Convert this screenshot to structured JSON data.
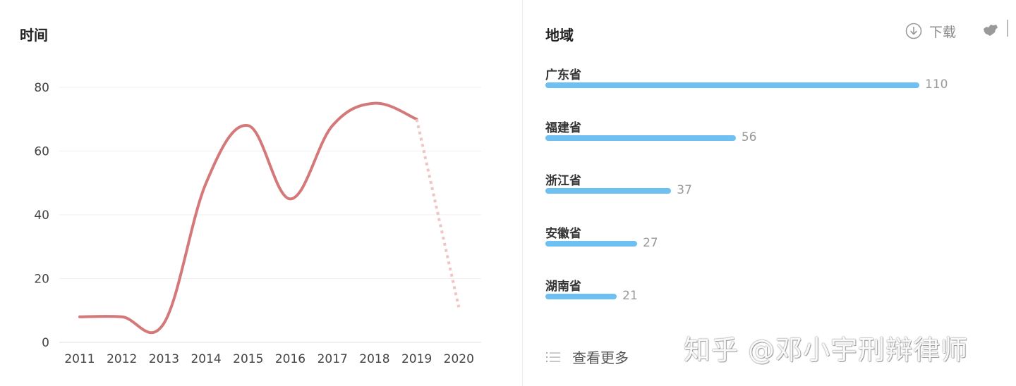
{
  "left_panel": {
    "title": "时间"
  },
  "right_panel": {
    "title": "地域",
    "download_label": "下载",
    "download_icon": "download-icon",
    "map_icon": "china-map-icon",
    "more_label": "查看更多",
    "more_icon": "list-icon",
    "bar_color": "#6ec0f3",
    "regions": [
      {
        "name": "广东省",
        "value": 110
      },
      {
        "name": "福建省",
        "value": 56
      },
      {
        "name": "浙江省",
        "value": 37
      },
      {
        "name": "安徽省",
        "value": 27
      },
      {
        "name": "湖南省",
        "value": 21
      }
    ]
  },
  "watermark": "知乎 @邓小宇刑辩律师",
  "chart_data": [
    {
      "type": "line",
      "title": "时间",
      "xlabel": "",
      "ylabel": "",
      "ylim": [
        0,
        80
      ],
      "yticks": [
        0,
        20,
        40,
        60,
        80
      ],
      "grid": true,
      "line_color": "#d4787a",
      "projection_color": "#f0c4c2",
      "x": [
        "2011",
        "2012",
        "2013",
        "2014",
        "2015",
        "2016",
        "2017",
        "2018",
        "2019",
        "2020"
      ],
      "values": [
        8,
        8,
        6,
        50,
        68,
        45,
        68,
        75,
        70,
        11
      ],
      "solid_until_index": 8,
      "projection_from_index": 8
    },
    {
      "type": "bar",
      "title": "地域",
      "orientation": "horizontal",
      "categories": [
        "广东省",
        "福建省",
        "浙江省",
        "安徽省",
        "湖南省"
      ],
      "values": [
        110,
        56,
        37,
        27,
        21
      ]
    }
  ]
}
